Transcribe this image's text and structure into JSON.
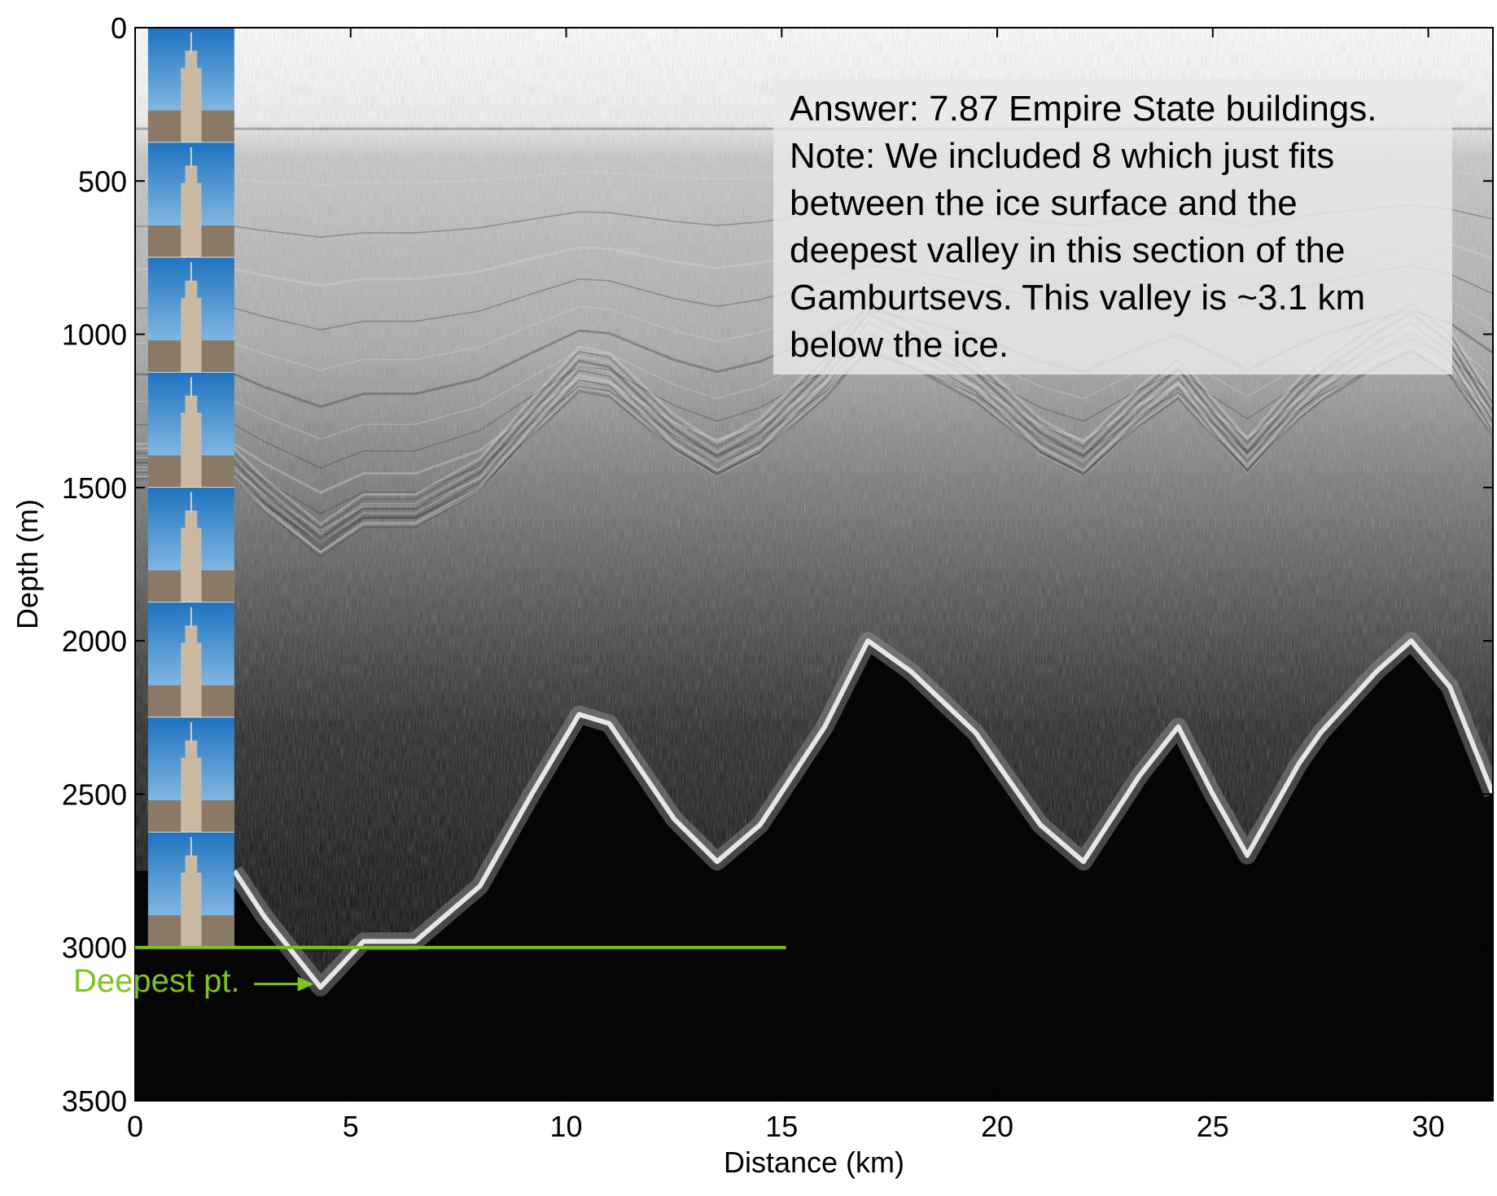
{
  "chart_data": {
    "type": "radargram",
    "title": "",
    "xlabel": "Distance (km)",
    "ylabel": "Depth (m)",
    "xlim": [
      0,
      31.5
    ],
    "ylim": [
      0,
      3500
    ],
    "y_inverted": true,
    "xticks": [
      0,
      5,
      10,
      15,
      20,
      25,
      30
    ],
    "yticks": [
      0,
      500,
      1000,
      1500,
      2000,
      2500,
      3000,
      3500
    ],
    "bed_profile": [
      {
        "x": 2.3,
        "y": 2750
      },
      {
        "x": 3.0,
        "y": 2900
      },
      {
        "x": 4.3,
        "y": 3130
      },
      {
        "x": 5.3,
        "y": 2980
      },
      {
        "x": 6.5,
        "y": 2980
      },
      {
        "x": 8.0,
        "y": 2800
      },
      {
        "x": 9.2,
        "y": 2500
      },
      {
        "x": 10.3,
        "y": 2240
      },
      {
        "x": 11.0,
        "y": 2270
      },
      {
        "x": 12.5,
        "y": 2580
      },
      {
        "x": 13.5,
        "y": 2720
      },
      {
        "x": 14.5,
        "y": 2600
      },
      {
        "x": 16.0,
        "y": 2280
      },
      {
        "x": 17.0,
        "y": 2000
      },
      {
        "x": 18.0,
        "y": 2100
      },
      {
        "x": 19.5,
        "y": 2300
      },
      {
        "x": 21.0,
        "y": 2600
      },
      {
        "x": 22.0,
        "y": 2720
      },
      {
        "x": 23.3,
        "y": 2440
      },
      {
        "x": 24.2,
        "y": 2280
      },
      {
        "x": 25.0,
        "y": 2500
      },
      {
        "x": 25.8,
        "y": 2700
      },
      {
        "x": 27.0,
        "y": 2400
      },
      {
        "x": 27.5,
        "y": 2300
      },
      {
        "x": 28.8,
        "y": 2100
      },
      {
        "x": 29.6,
        "y": 2000
      },
      {
        "x": 30.5,
        "y": 2150
      },
      {
        "x": 31.5,
        "y": 2500
      }
    ],
    "ice_surface_depth": 250,
    "reference_line": {
      "y": 3000,
      "x_start": 0,
      "x_end": 15.1,
      "color": "#7fc31c"
    },
    "deepest_point": {
      "x": 4.3,
      "y": 3130
    },
    "buildings": {
      "count": 8,
      "x_start": 0.3,
      "x_end": 2.3,
      "top_depth": 0,
      "bottom_depth": 3000
    }
  },
  "note": {
    "lines": [
      "Answer: 7.87 Empire State buildings.",
      "Note: We included 8 which just fits",
      "between the ice surface and the",
      "deepest valley in this section of the",
      "Gamburtsevs.  This valley is ~3.1 km",
      "below the ice."
    ]
  },
  "marker": {
    "label": "Deepest pt.",
    "color": "#7fc31c"
  },
  "colors": {
    "sky_top": "#1e73c0",
    "sky_bottom": "#a8d0ee",
    "building": "#c9b9a3",
    "city": "#8a7966",
    "ice_layers": "#8f8f8f",
    "bed_echo": "#e0e0e0",
    "background": "#050505"
  }
}
